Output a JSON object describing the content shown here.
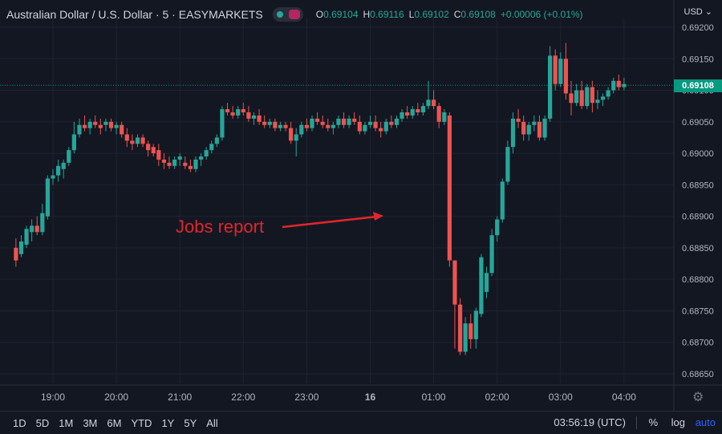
{
  "header": {
    "symbol_title": "Australian Dollar / U.S. Dollar · 5 · EASYMARKETS",
    "ohlc": {
      "o_label": "O",
      "o_value": "0.69104",
      "h_label": "H",
      "h_value": "0.69116",
      "l_label": "L",
      "l_value": "0.69102",
      "c_label": "C",
      "c_value": "0.69108",
      "change": "+0.00006 (+0.01%)"
    }
  },
  "currency_menu": "USD ⌄",
  "last_price": "0.69108",
  "annotation": "Jobs report",
  "colors": {
    "up": "#26a69a",
    "down": "#ef5350",
    "background": "#131722",
    "annotation": "#e0262a",
    "accent": "#2962ff"
  },
  "bottom_bar": {
    "ranges": [
      "1D",
      "5D",
      "1M",
      "3M",
      "6M",
      "YTD",
      "1Y",
      "5Y",
      "All"
    ],
    "clock": "03:56:19 (UTC)",
    "percent": "%",
    "log": "log",
    "auto": "auto"
  },
  "chart_data": {
    "type": "candlestick",
    "y_ticks": [
      "0.69200",
      "0.69150",
      "0.69100",
      "0.69050",
      "0.69000",
      "0.68950",
      "0.68900",
      "0.68850",
      "0.68800",
      "0.68750",
      "0.68700",
      "0.68650"
    ],
    "ylim": [
      0.6863,
      0.69215
    ],
    "x_ticks": [
      "19:00",
      "20:00",
      "21:00",
      "22:00",
      "23:00",
      "16",
      "01:00",
      "02:00",
      "03:00",
      "04:00"
    ],
    "bars_per_hour": 12,
    "first_bar_time": "18:25",
    "candles": [
      [
        0.6885,
        0.68865,
        0.6882,
        0.6883
      ],
      [
        0.6884,
        0.6887,
        0.68835,
        0.6886
      ],
      [
        0.68855,
        0.68885,
        0.6885,
        0.6888
      ],
      [
        0.68875,
        0.68895,
        0.6886,
        0.68885
      ],
      [
        0.68885,
        0.689,
        0.6887,
        0.68875
      ],
      [
        0.68875,
        0.6892,
        0.6887,
        0.68905
      ],
      [
        0.689,
        0.68965,
        0.68895,
        0.6896
      ],
      [
        0.6896,
        0.68975,
        0.6895,
        0.68965
      ],
      [
        0.68965,
        0.6899,
        0.68955,
        0.6898
      ],
      [
        0.68975,
        0.6899,
        0.6896,
        0.68985
      ],
      [
        0.68985,
        0.6901,
        0.6898,
        0.69005
      ],
      [
        0.69005,
        0.6905,
        0.69,
        0.6903
      ],
      [
        0.6903,
        0.69055,
        0.69025,
        0.69045
      ],
      [
        0.69045,
        0.6906,
        0.69035,
        0.6904
      ],
      [
        0.6904,
        0.69055,
        0.6903,
        0.6905
      ],
      [
        0.6905,
        0.6906,
        0.6904,
        0.69045
      ],
      [
        0.69045,
        0.69055,
        0.6903,
        0.6904
      ],
      [
        0.69045,
        0.69055,
        0.69035,
        0.6905
      ],
      [
        0.6905,
        0.69055,
        0.69035,
        0.6904
      ],
      [
        0.6904,
        0.6905,
        0.6903,
        0.69045
      ],
      [
        0.69045,
        0.6905,
        0.69025,
        0.6903
      ],
      [
        0.6903,
        0.6904,
        0.6901,
        0.6902
      ],
      [
        0.6902,
        0.6903,
        0.69005,
        0.69015
      ],
      [
        0.69015,
        0.6903,
        0.6901,
        0.69025
      ],
      [
        0.69025,
        0.6903,
        0.6901,
        0.69015
      ],
      [
        0.69015,
        0.6902,
        0.68995,
        0.69005
      ],
      [
        0.6901,
        0.69015,
        0.68995,
        0.69
      ],
      [
        0.69005,
        0.69015,
        0.6898,
        0.6899
      ],
      [
        0.6899,
        0.69,
        0.68975,
        0.68985
      ],
      [
        0.68985,
        0.68995,
        0.68975,
        0.6898
      ],
      [
        0.6898,
        0.68995,
        0.68975,
        0.6899
      ],
      [
        0.6899,
        0.69,
        0.6898,
        0.68995
      ],
      [
        0.68985,
        0.68995,
        0.68975,
        0.6898
      ],
      [
        0.6898,
        0.6899,
        0.6897,
        0.68975
      ],
      [
        0.68975,
        0.68995,
        0.6897,
        0.6899
      ],
      [
        0.6899,
        0.69,
        0.6898,
        0.68995
      ],
      [
        0.68995,
        0.6901,
        0.6899,
        0.69005
      ],
      [
        0.69005,
        0.6902,
        0.69,
        0.69015
      ],
      [
        0.69015,
        0.6903,
        0.6901,
        0.69025
      ],
      [
        0.69025,
        0.69075,
        0.6902,
        0.6907
      ],
      [
        0.6907,
        0.6908,
        0.6906,
        0.69065
      ],
      [
        0.69065,
        0.69075,
        0.69055,
        0.6906
      ],
      [
        0.6906,
        0.69075,
        0.69055,
        0.6907
      ],
      [
        0.6907,
        0.6908,
        0.6906,
        0.69065
      ],
      [
        0.69065,
        0.69075,
        0.6905,
        0.69055
      ],
      [
        0.69055,
        0.69065,
        0.69045,
        0.6906
      ],
      [
        0.6906,
        0.6907,
        0.69045,
        0.6905
      ],
      [
        0.6905,
        0.6906,
        0.6904,
        0.69045
      ],
      [
        0.69045,
        0.69055,
        0.6904,
        0.6905
      ],
      [
        0.6905,
        0.69055,
        0.69035,
        0.6904
      ],
      [
        0.6904,
        0.6905,
        0.69035,
        0.69045
      ],
      [
        0.69045,
        0.6905,
        0.69035,
        0.6904
      ],
      [
        0.6904,
        0.6905,
        0.69015,
        0.6902
      ],
      [
        0.6902,
        0.6904,
        0.68995,
        0.6903
      ],
      [
        0.6903,
        0.6905,
        0.69025,
        0.69045
      ],
      [
        0.69045,
        0.69055,
        0.69035,
        0.6904
      ],
      [
        0.6904,
        0.6906,
        0.69035,
        0.69055
      ],
      [
        0.69055,
        0.69065,
        0.69045,
        0.6905
      ],
      [
        0.6905,
        0.6906,
        0.6904,
        0.69045
      ],
      [
        0.69045,
        0.69055,
        0.69035,
        0.6904
      ],
      [
        0.6904,
        0.6905,
        0.6903,
        0.69045
      ],
      [
        0.69045,
        0.6906,
        0.6904,
        0.69055
      ],
      [
        0.69055,
        0.69065,
        0.6904,
        0.69045
      ],
      [
        0.69045,
        0.6906,
        0.6904,
        0.69055
      ],
      [
        0.69055,
        0.69065,
        0.69045,
        0.6905
      ],
      [
        0.6905,
        0.6906,
        0.6903,
        0.69035
      ],
      [
        0.69035,
        0.6905,
        0.6903,
        0.69045
      ],
      [
        0.69045,
        0.6906,
        0.6904,
        0.6905
      ],
      [
        0.6905,
        0.6906,
        0.69035,
        0.6904
      ],
      [
        0.6904,
        0.6905,
        0.69025,
        0.69035
      ],
      [
        0.69035,
        0.69055,
        0.6903,
        0.6905
      ],
      [
        0.6905,
        0.6906,
        0.6904,
        0.69045
      ],
      [
        0.69045,
        0.6906,
        0.6904,
        0.69055
      ],
      [
        0.69055,
        0.6907,
        0.6905,
        0.69065
      ],
      [
        0.69065,
        0.69075,
        0.69055,
        0.6906
      ],
      [
        0.6906,
        0.69075,
        0.69055,
        0.6907
      ],
      [
        0.6907,
        0.6908,
        0.6906,
        0.69065
      ],
      [
        0.69065,
        0.6908,
        0.6906,
        0.69075
      ],
      [
        0.69075,
        0.69115,
        0.6907,
        0.69085
      ],
      [
        0.69085,
        0.691,
        0.6907,
        0.69075
      ],
      [
        0.69075,
        0.6908,
        0.6904,
        0.6905
      ],
      [
        0.6905,
        0.6907,
        0.69045,
        0.69065
      ],
      [
        0.6906,
        0.69065,
        0.6882,
        0.6883
      ],
      [
        0.6883,
        0.6883,
        0.6869,
        0.6876
      ],
      [
        0.6876,
        0.6877,
        0.6868,
        0.68685
      ],
      [
        0.68685,
        0.6874,
        0.6868,
        0.6873
      ],
      [
        0.6873,
        0.68745,
        0.6869,
        0.68705
      ],
      [
        0.68705,
        0.68755,
        0.6869,
        0.6875
      ],
      [
        0.68745,
        0.6884,
        0.6874,
        0.68835
      ],
      [
        0.6878,
        0.6882,
        0.6877,
        0.6881
      ],
      [
        0.6881,
        0.6888,
        0.68805,
        0.6887
      ],
      [
        0.6887,
        0.689,
        0.6886,
        0.68895
      ],
      [
        0.68895,
        0.6896,
        0.6889,
        0.68955
      ],
      [
        0.68955,
        0.6902,
        0.6895,
        0.6901
      ],
      [
        0.6901,
        0.69065,
        0.69,
        0.69055
      ],
      [
        0.69055,
        0.6907,
        0.6904,
        0.6905
      ],
      [
        0.6905,
        0.6906,
        0.6902,
        0.6903
      ],
      [
        0.6903,
        0.6905,
        0.6902,
        0.69045
      ],
      [
        0.69045,
        0.6906,
        0.69035,
        0.6905
      ],
      [
        0.6905,
        0.6906,
        0.6902,
        0.69025
      ],
      [
        0.69025,
        0.6906,
        0.6902,
        0.69055
      ],
      [
        0.69055,
        0.6917,
        0.6905,
        0.69155
      ],
      [
        0.69155,
        0.69165,
        0.691,
        0.6911
      ],
      [
        0.6911,
        0.6916,
        0.69105,
        0.6915
      ],
      [
        0.6915,
        0.69175,
        0.69085,
        0.69095
      ],
      [
        0.69095,
        0.69115,
        0.6906,
        0.6908
      ],
      [
        0.6908,
        0.6911,
        0.69075,
        0.691
      ],
      [
        0.691,
        0.69115,
        0.6907,
        0.69075
      ],
      [
        0.69075,
        0.6911,
        0.6907,
        0.69105
      ],
      [
        0.69105,
        0.69115,
        0.69065,
        0.6908
      ],
      [
        0.6908,
        0.691,
        0.6907,
        0.69085
      ],
      [
        0.69085,
        0.69095,
        0.69075,
        0.6909
      ],
      [
        0.6909,
        0.69105,
        0.69085,
        0.691
      ],
      [
        0.691,
        0.6912,
        0.69095,
        0.69115
      ],
      [
        0.69115,
        0.69125,
        0.691,
        0.69105
      ],
      [
        0.69105,
        0.6912,
        0.691,
        0.6911
      ]
    ]
  }
}
